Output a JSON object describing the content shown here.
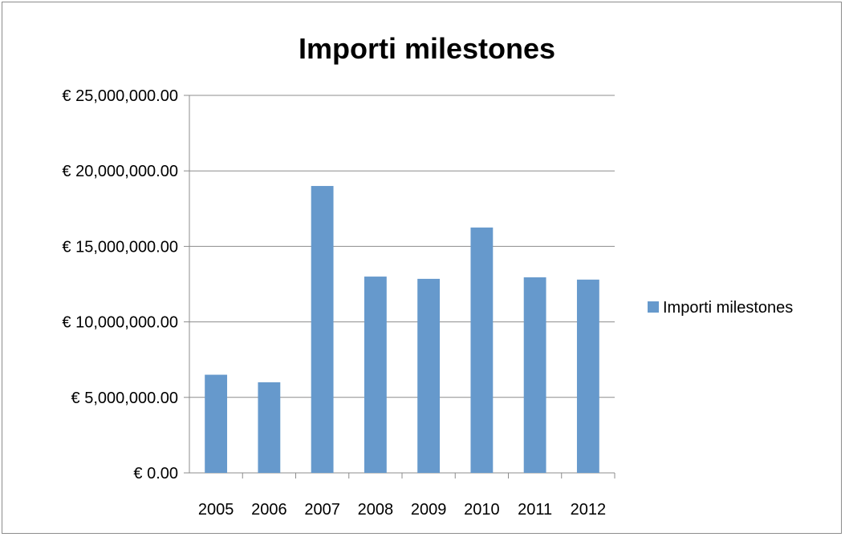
{
  "chart_data": {
    "type": "bar",
    "title": "Importi milestones",
    "xlabel": "",
    "ylabel": "",
    "categories": [
      "2005",
      "2006",
      "2007",
      "2008",
      "2009",
      "2010",
      "2011",
      "2012"
    ],
    "series": [
      {
        "name": "Importi milestones",
        "values": [
          6500000,
          6000000,
          19000000,
          13000000,
          12850000,
          16250000,
          12950000,
          12800000
        ],
        "color": "#6699cc"
      }
    ],
    "ylim": [
      0,
      25000000
    ],
    "yticks": [
      0,
      5000000,
      10000000,
      15000000,
      20000000,
      25000000
    ],
    "ytick_labels": [
      "€ 0.00",
      "€ 5,000,000.00",
      "€ 10,000,000.00",
      "€ 15,000,000.00",
      "€ 20,000,000.00",
      "€ 25,000,000.00"
    ],
    "grid": true,
    "legend_position": "right"
  }
}
